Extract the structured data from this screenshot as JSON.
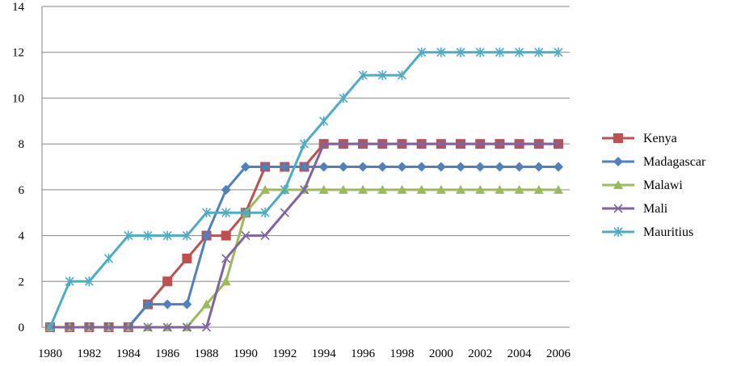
{
  "chart_data": {
    "type": "line",
    "title": "",
    "xlabel": "",
    "ylabel": "",
    "x": [
      1980,
      1981,
      1982,
      1983,
      1984,
      1985,
      1986,
      1987,
      1988,
      1989,
      1990,
      1991,
      1992,
      1993,
      1994,
      1995,
      1996,
      1997,
      1998,
      1999,
      2000,
      2001,
      2002,
      2003,
      2004,
      2005,
      2006
    ],
    "x_tick_labels": [
      "1980",
      "1982",
      "1984",
      "1986",
      "1988",
      "1990",
      "1992",
      "1994",
      "1996",
      "1998",
      "2000",
      "2002",
      "2004",
      "2006"
    ],
    "y_tick_labels": [
      "0",
      "2",
      "4",
      "6",
      "8",
      "10",
      "12",
      "14"
    ],
    "ylim": [
      0,
      14
    ],
    "xlim": [
      1980,
      2006
    ],
    "grid": "horizontal",
    "legend_position": "right",
    "series": [
      {
        "name": "Kenya",
        "color": "#c0504d",
        "marker": "square",
        "values": [
          0,
          0,
          0,
          0,
          0,
          1,
          2,
          3,
          4,
          4,
          5,
          7,
          7,
          7,
          8,
          8,
          8,
          8,
          8,
          8,
          8,
          8,
          8,
          8,
          8,
          8,
          8
        ]
      },
      {
        "name": "Madagascar",
        "color": "#4f81bd",
        "marker": "diamond",
        "values": [
          0,
          0,
          0,
          0,
          0,
          1,
          1,
          1,
          4,
          6,
          7,
          7,
          7,
          7,
          7,
          7,
          7,
          7,
          7,
          7,
          7,
          7,
          7,
          7,
          7,
          7,
          7
        ]
      },
      {
        "name": "Malawi",
        "color": "#9bbb59",
        "marker": "triangle",
        "values": [
          0,
          0,
          0,
          0,
          0,
          0,
          0,
          0,
          1,
          2,
          5,
          6,
          6,
          6,
          6,
          6,
          6,
          6,
          6,
          6,
          6,
          6,
          6,
          6,
          6,
          6,
          6
        ]
      },
      {
        "name": "Mali",
        "color": "#8064a2",
        "marker": "x",
        "values": [
          0,
          0,
          0,
          0,
          0,
          0,
          0,
          0,
          0,
          3,
          4,
          4,
          5,
          6,
          8,
          8,
          8,
          8,
          8,
          8,
          8,
          8,
          8,
          8,
          8,
          8,
          8
        ]
      },
      {
        "name": "Mauritius",
        "color": "#4bacc6",
        "marker": "star",
        "values": [
          0,
          2,
          2,
          3,
          4,
          4,
          4,
          4,
          5,
          5,
          5,
          5,
          6,
          8,
          9,
          10,
          11,
          11,
          11,
          12,
          12,
          12,
          12,
          12,
          12,
          12,
          12
        ]
      }
    ]
  }
}
